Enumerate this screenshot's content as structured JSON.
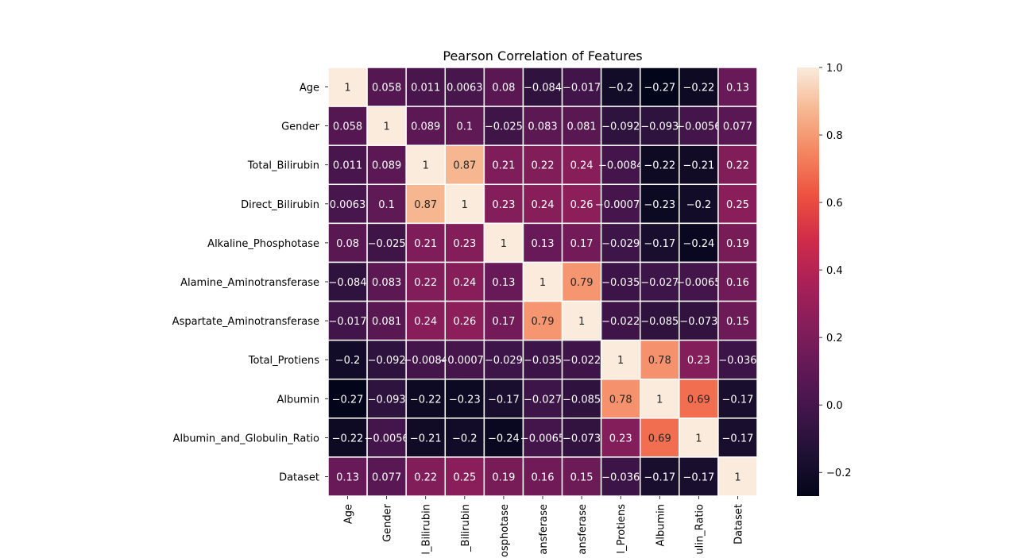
{
  "chart_data": {
    "type": "heatmap",
    "title": "Pearson Correlation of Features",
    "ylabels": [
      "Age",
      "Gender",
      "Total_Bilirubin",
      "Direct_Bilirubin",
      "Alkaline_Phosphotase",
      "Alamine_Aminotransferase",
      "Aspartate_Aminotransferase",
      "Total_Protiens",
      "Albumin",
      "Albumin_and_Globulin_Ratio",
      "Dataset"
    ],
    "xlabels_visible": [
      "Age",
      "Gender",
      "l_Bilirubin",
      "_Bilirubin",
      "osphotase",
      "ansferase",
      "ansferase",
      "l_Protiens",
      "Albumin",
      "ulin_Ratio",
      "Dataset"
    ],
    "values": [
      [
        1,
        0.058,
        0.011,
        0.0063,
        0.08,
        -0.084,
        -0.017,
        -0.2,
        -0.27,
        -0.22,
        0.13
      ],
      [
        0.058,
        1,
        0.089,
        0.1,
        -0.025,
        0.083,
        0.081,
        -0.092,
        -0.093,
        -0.0056,
        0.077
      ],
      [
        0.011,
        0.089,
        1,
        0.87,
        0.21,
        0.22,
        0.24,
        -0.0084,
        -0.22,
        -0.21,
        0.22
      ],
      [
        0.0063,
        0.1,
        0.87,
        1,
        0.23,
        0.24,
        0.26,
        -0.00073,
        -0.23,
        -0.2,
        0.25
      ],
      [
        0.08,
        -0.025,
        0.21,
        0.23,
        1,
        0.13,
        0.17,
        -0.029,
        -0.17,
        -0.24,
        0.19
      ],
      [
        -0.084,
        0.083,
        0.22,
        0.24,
        0.13,
        1,
        0.79,
        -0.035,
        -0.027,
        -0.0065,
        0.16
      ],
      [
        -0.017,
        0.081,
        0.24,
        0.26,
        0.17,
        0.79,
        1,
        -0.022,
        -0.085,
        -0.073,
        0.15
      ],
      [
        -0.2,
        -0.092,
        -0.0084,
        -0.00073,
        -0.029,
        -0.035,
        -0.022,
        1,
        0.78,
        0.23,
        -0.036
      ],
      [
        -0.27,
        -0.093,
        -0.22,
        -0.23,
        -0.17,
        -0.027,
        -0.085,
        0.78,
        1,
        0.69,
        -0.17
      ],
      [
        -0.22,
        -0.0056,
        -0.21,
        -0.2,
        -0.24,
        -0.0065,
        -0.073,
        0.23,
        0.69,
        1,
        -0.17
      ],
      [
        0.13,
        0.077,
        0.22,
        0.25,
        0.19,
        0.16,
        0.15,
        -0.036,
        -0.17,
        -0.17,
        1
      ]
    ],
    "colorbar": {
      "min": -0.27,
      "max": 1.0,
      "ticks": [
        -0.2,
        0.0,
        0.2,
        0.4,
        0.6,
        0.8,
        1.0
      ],
      "tick_labels": [
        "−0.2",
        "0.0",
        "0.2",
        "0.4",
        "0.6",
        "0.8",
        "1.0"
      ]
    },
    "colormap": "rocket",
    "grid_lines": "white",
    "annotations": true
  }
}
